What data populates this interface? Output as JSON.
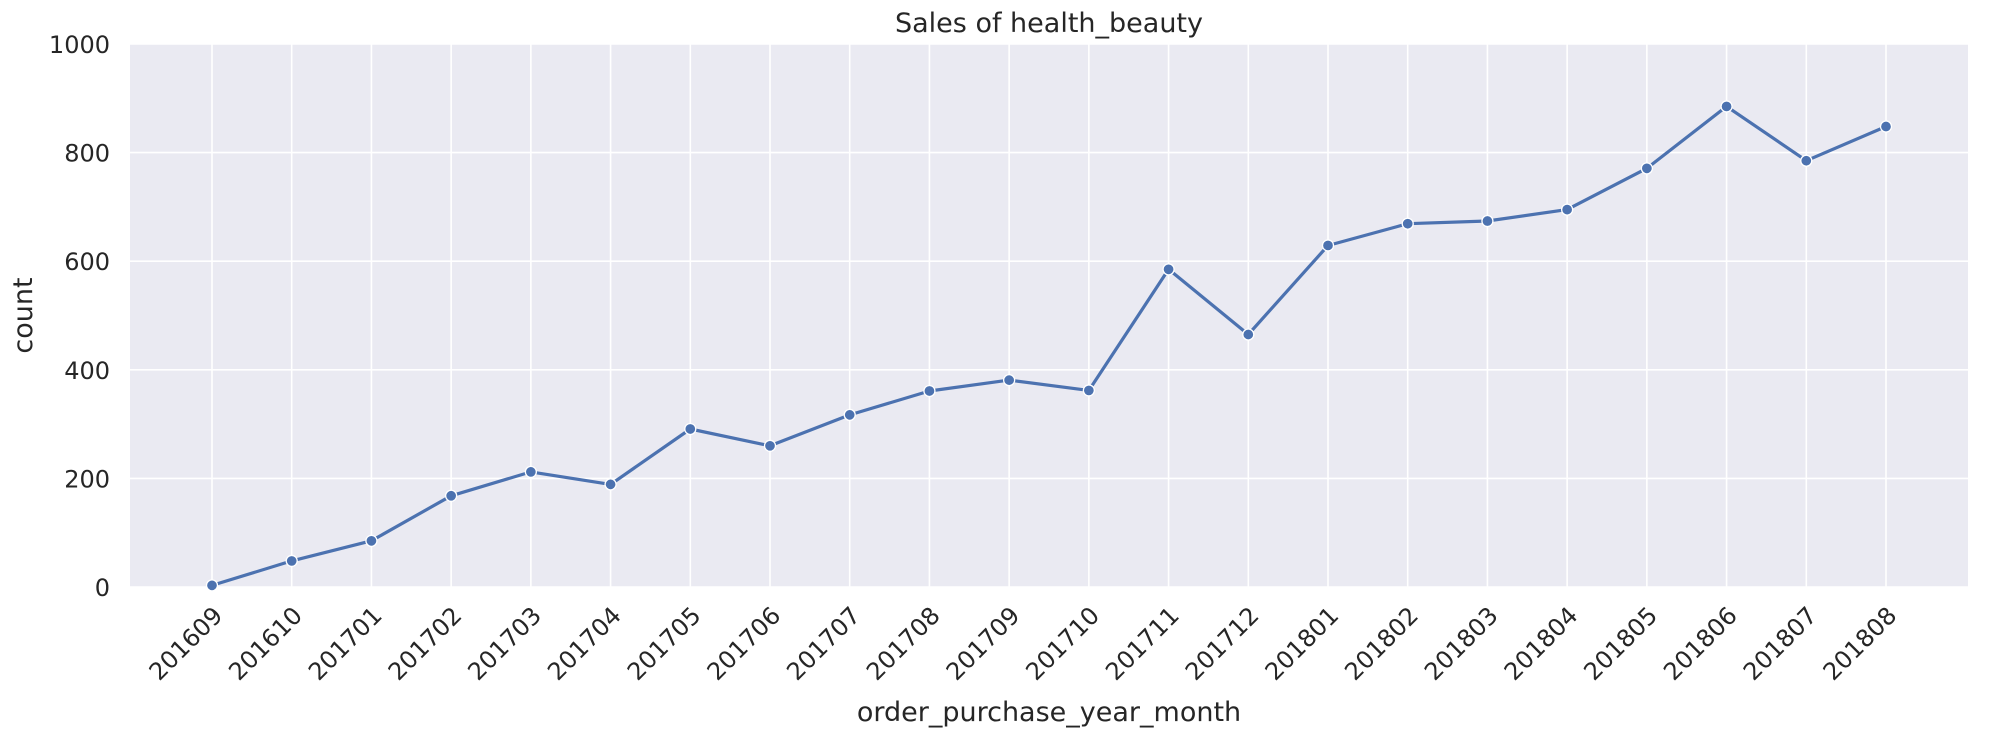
{
  "chart_data": {
    "type": "line",
    "title": "Sales of health_beauty",
    "xlabel": "order_purchase_year_month",
    "ylabel": "count",
    "ylim": [
      0,
      1000
    ],
    "yticks": [
      0,
      200,
      400,
      600,
      800,
      1000
    ],
    "grid": true,
    "background_color": "#eaeaf2",
    "grid_color": "#ffffff",
    "line_color": "#4c72b0",
    "marker": "circle",
    "categories": [
      "201609",
      "201610",
      "201701",
      "201702",
      "201703",
      "201704",
      "201705",
      "201706",
      "201707",
      "201708",
      "201709",
      "201710",
      "201711",
      "201712",
      "201801",
      "201802",
      "201803",
      "201804",
      "201805",
      "201806",
      "201807",
      "201808"
    ],
    "series": [
      {
        "values": [
          3,
          48,
          85,
          168,
          212,
          189,
          291,
          260,
          317,
          361,
          381,
          362,
          585,
          465,
          629,
          669,
          674,
          695,
          771,
          885,
          785,
          848
        ]
      }
    ]
  }
}
